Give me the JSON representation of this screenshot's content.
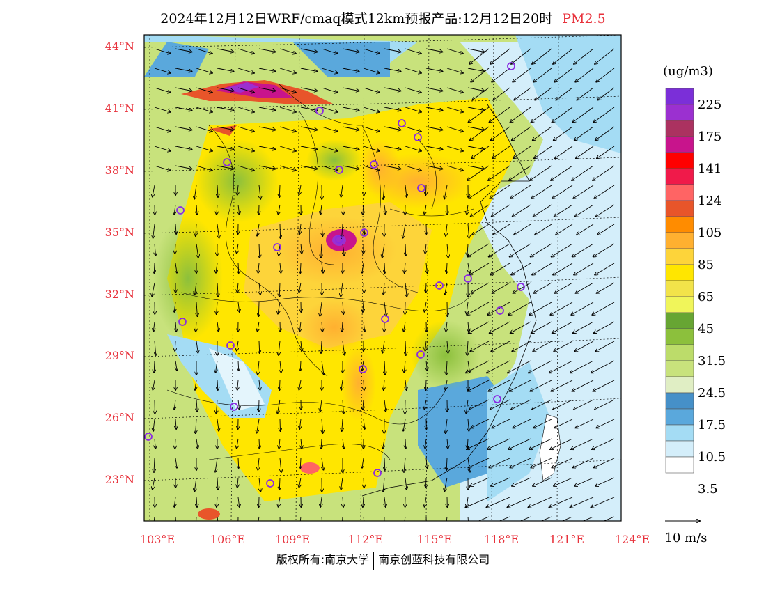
{
  "title": {
    "main": "2024年12月12日WRF/cmaq模式12km预报产品:12月12日20时",
    "species": "PM2.5"
  },
  "map": {
    "lat_labels": [
      "44°N",
      "41°N",
      "38°N",
      "35°N",
      "32°N",
      "29°N",
      "26°N",
      "23°N"
    ],
    "lon_labels": [
      "103°E",
      "106°E",
      "109°E",
      "112°E",
      "115°E",
      "118°E",
      "121°E",
      "124°E"
    ]
  },
  "legend": {
    "unit": "(ug/m3)",
    "colors": [
      "#7b2fd8",
      "#9b30d0",
      "#ab3260",
      "#c8148c",
      "#ff0000",
      "#f01a4a",
      "#ff6464",
      "#e8552a",
      "#ff8c00",
      "#ffb030",
      "#fdd43a",
      "#ffe600",
      "#f2e34a",
      "#f0f55a",
      "#67a533",
      "#8cc03c",
      "#bcdc6a",
      "#c8e27c",
      "#e0eec4",
      "#4690c8",
      "#5aa8dc",
      "#a4dcf4",
      "#d4eefa",
      "#ffffff"
    ],
    "labels": [
      "225",
      "175",
      "141",
      "124",
      "105",
      "85",
      "65",
      "45",
      "31.5",
      "24.5",
      "17.5",
      "10.5",
      "3.5"
    ],
    "wind_ref": "10 m/s"
  },
  "footer": {
    "copyright": "版权所有:南京大学",
    "company": "南京创蓝科技有限公司"
  }
}
